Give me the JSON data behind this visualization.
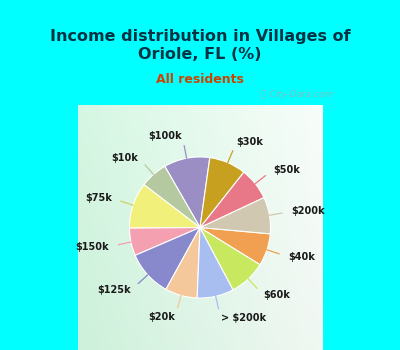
{
  "title": "Income distribution in Villages of\nOriole, FL (%)",
  "subtitle": "All residents",
  "title_color": "#003344",
  "subtitle_color": "#cc4400",
  "bg_cyan": "#00ffff",
  "watermark": "ⓘ City-Data.com",
  "labels": [
    "$100k",
    "$10k",
    "$75k",
    "$150k",
    "$125k",
    "$20k",
    "> $200k",
    "$60k",
    "$40k",
    "$200k",
    "$50k",
    "$30k"
  ],
  "values": [
    10,
    6,
    10,
    6,
    10,
    7,
    8,
    8,
    7,
    8,
    7,
    8
  ],
  "colors": [
    "#9b8ec4",
    "#b5c9a0",
    "#f0f07a",
    "#f4a0b0",
    "#8888cc",
    "#f4c89a",
    "#a8bef0",
    "#c8e860",
    "#f0a050",
    "#d0c8b0",
    "#e87888",
    "#c8a020"
  ],
  "line_colors": [
    "#9b8ec4",
    "#b5c9a0",
    "#d0d060",
    "#f4a0b0",
    "#8888cc",
    "#f4c89a",
    "#a8bef0",
    "#c8e860",
    "#f0a050",
    "#d0c8b0",
    "#e87888",
    "#c8a020"
  ],
  "figsize": [
    4.0,
    3.5
  ],
  "dpi": 100,
  "startangle": 82
}
